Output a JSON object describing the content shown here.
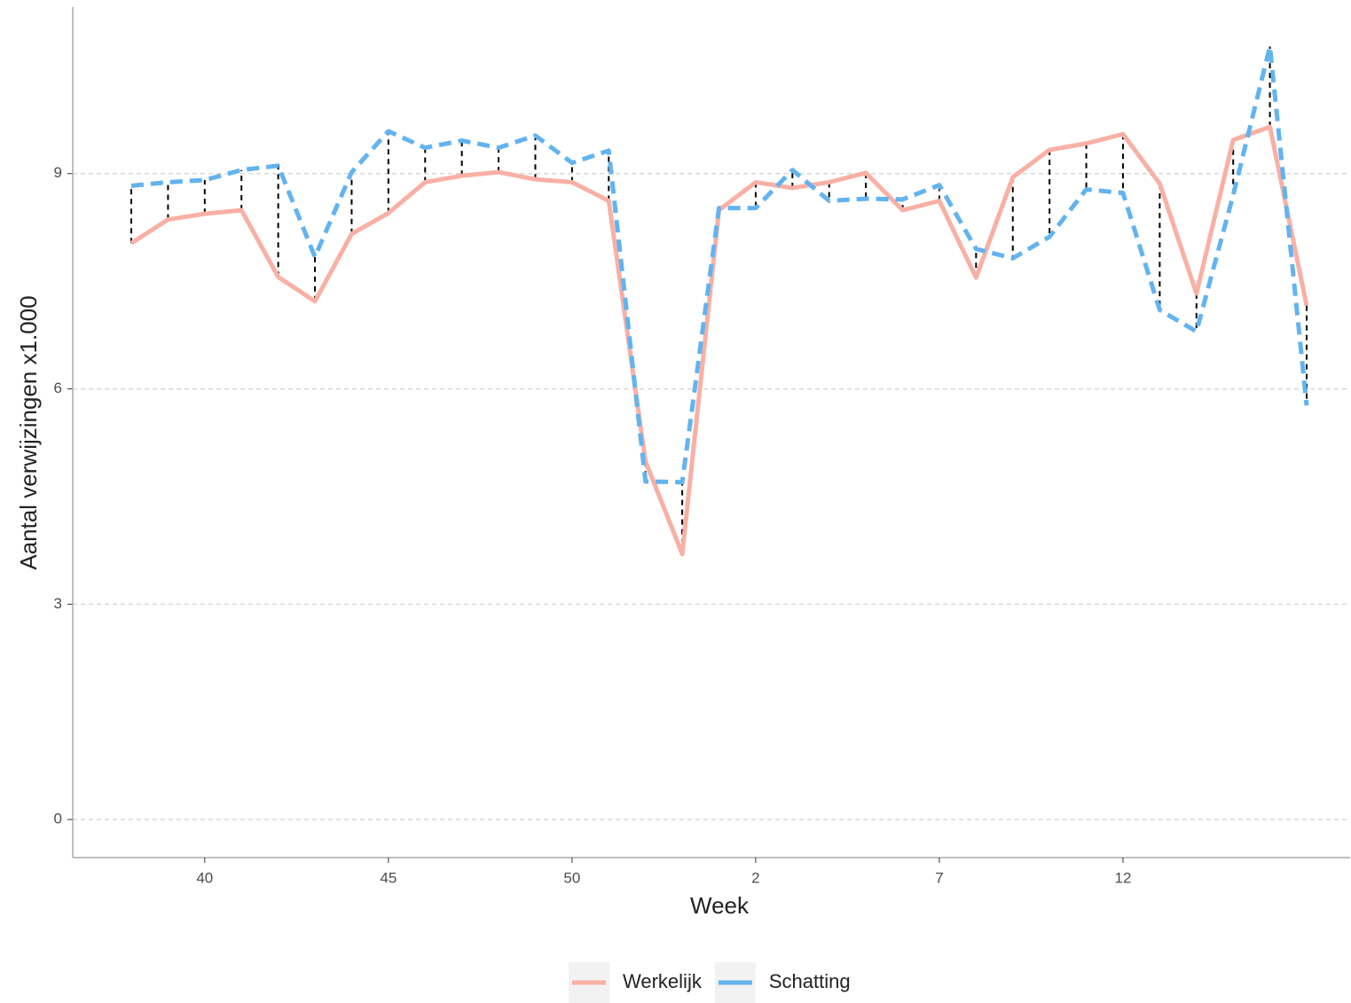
{
  "chart_data": {
    "type": "line",
    "xlabel": "Week",
    "ylabel": "Aantal verwijzingen x1.000",
    "categories": [
      null,
      null,
      "40",
      null,
      null,
      null,
      null,
      "45",
      null,
      null,
      null,
      null,
      "50",
      null,
      null,
      null,
      null,
      "2",
      null,
      null,
      null,
      null,
      "7",
      null,
      null,
      null,
      null,
      "12",
      null,
      null,
      null,
      null,
      null
    ],
    "series": [
      {
        "name": "Werkelijk",
        "color": "#f9b0a4",
        "linetype": "solid",
        "values": [
          8.03,
          8.36,
          8.44,
          8.49,
          7.56,
          7.22,
          8.16,
          8.45,
          8.88,
          8.97,
          9.02,
          8.92,
          8.88,
          8.62,
          4.99,
          3.7,
          8.49,
          8.88,
          8.8,
          8.88,
          9.01,
          8.49,
          8.62,
          7.55,
          8.95,
          9.33,
          9.42,
          9.55,
          8.86,
          7.33,
          9.47,
          9.65,
          7.16
        ]
      },
      {
        "name": "Schatting",
        "color": "#62b3f0",
        "linetype": "dashed",
        "values": [
          8.83,
          8.88,
          8.91,
          9.05,
          9.11,
          7.84,
          9.02,
          9.59,
          9.36,
          9.46,
          9.36,
          9.53,
          9.15,
          9.32,
          4.71,
          4.7,
          8.52,
          8.52,
          9.05,
          8.62,
          8.65,
          8.64,
          8.84,
          7.95,
          7.82,
          8.12,
          8.78,
          8.73,
          7.1,
          6.8,
          8.7,
          10.77,
          5.77
        ]
      }
    ],
    "ylim": [
      -0.53,
      11.32
    ],
    "yticks": [
      0,
      3,
      6,
      9
    ],
    "grid": true,
    "legend": "bottom"
  }
}
